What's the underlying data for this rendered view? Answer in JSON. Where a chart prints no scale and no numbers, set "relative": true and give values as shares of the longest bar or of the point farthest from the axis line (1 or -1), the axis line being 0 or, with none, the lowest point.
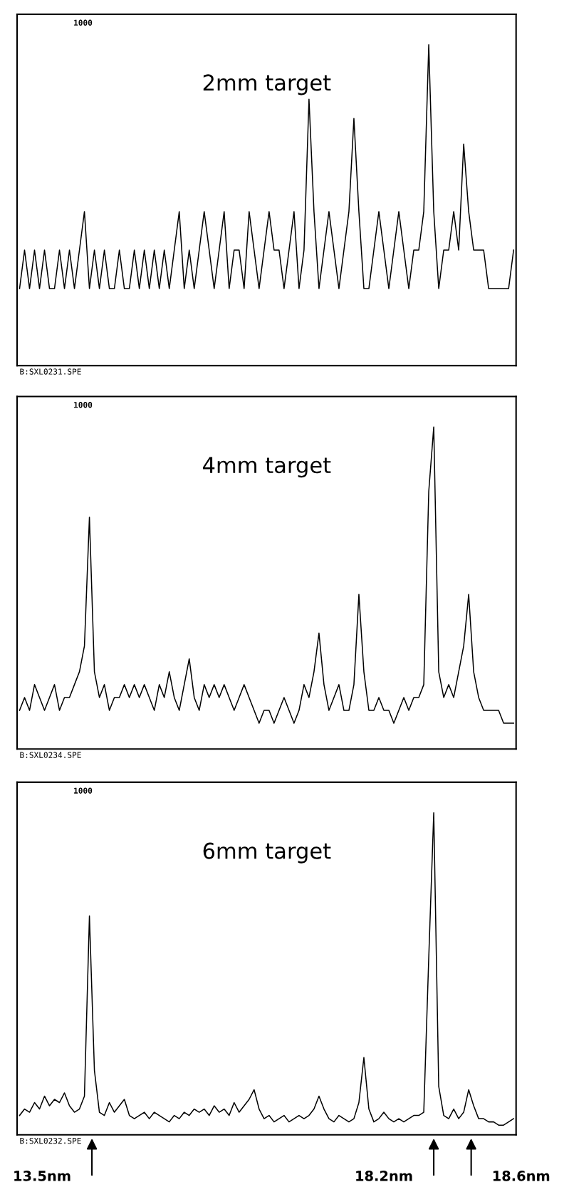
{
  "chart_data": [
    {
      "type": "line",
      "title": "2mm target",
      "relative": true,
      "annotations": [
        "1000",
        "B:SXL0231.SPE"
      ],
      "categories": [
        null,
        null,
        null,
        null,
        null,
        null,
        null,
        null,
        null,
        null,
        null,
        null,
        null,
        null,
        null,
        null,
        null,
        null,
        null,
        null,
        null,
        null,
        null,
        null,
        null,
        null,
        null,
        null,
        null,
        null,
        null,
        null,
        null,
        null,
        null,
        null,
        null,
        null,
        null,
        null,
        null,
        null,
        null,
        null,
        null,
        null,
        null,
        null,
        null,
        null,
        null,
        null,
        null,
        null,
        null,
        null,
        null,
        null,
        null,
        null,
        null,
        null,
        null,
        null,
        null,
        null,
        null,
        null,
        null,
        null,
        null,
        null,
        null,
        null,
        null,
        null,
        null,
        null,
        null,
        null,
        null,
        null,
        null,
        null,
        null,
        null,
        null,
        null,
        null,
        null,
        null,
        null,
        null,
        null,
        null,
        null,
        null,
        null,
        null,
        null
      ],
      "series": [
        {
          "color": "#000000",
          "values": [
            0.24,
            0.36,
            0.24,
            0.36,
            0.24,
            0.36,
            0.24,
            0.24,
            0.36,
            0.24,
            0.36,
            0.24,
            0.36,
            0.48,
            0.24,
            0.36,
            0.24,
            0.36,
            0.24,
            0.24,
            0.36,
            0.24,
            0.24,
            0.36,
            0.24,
            0.36,
            0.24,
            0.36,
            0.24,
            0.36,
            0.24,
            0.36,
            0.48,
            0.24,
            0.36,
            0.24,
            0.36,
            0.48,
            0.36,
            0.24,
            0.36,
            0.48,
            0.24,
            0.36,
            0.36,
            0.24,
            0.48,
            0.36,
            0.24,
            0.36,
            0.48,
            0.36,
            0.36,
            0.24,
            0.36,
            0.48,
            0.24,
            0.36,
            0.83,
            0.48,
            0.24,
            0.36,
            0.48,
            0.36,
            0.24,
            0.36,
            0.48,
            0.77,
            0.48,
            0.24,
            0.24,
            0.36,
            0.48,
            0.36,
            0.24,
            0.36,
            0.48,
            0.36,
            0.24,
            0.36,
            0.36,
            0.48,
            1.0,
            0.48,
            0.24,
            0.36,
            0.36,
            0.48,
            0.36,
            0.69,
            0.48,
            0.36,
            0.36,
            0.36,
            0.24,
            0.24,
            0.24,
            0.24,
            0.24,
            0.36
          ]
        }
      ]
    },
    {
      "type": "line",
      "title": "4mm target",
      "relative": true,
      "annotations": [
        "1000",
        "B:SXL0234.SPE"
      ],
      "categories": [
        null,
        null,
        null,
        null,
        null,
        null,
        null,
        null,
        null,
        null,
        null,
        null,
        null,
        null,
        null,
        null,
        null,
        null,
        null,
        null,
        null,
        null,
        null,
        null,
        null,
        null,
        null,
        null,
        null,
        null,
        null,
        null,
        null,
        null,
        null,
        null,
        null,
        null,
        null,
        null,
        null,
        null,
        null,
        null,
        null,
        null,
        null,
        null,
        null,
        null,
        null,
        null,
        null,
        null,
        null,
        null,
        null,
        null,
        null,
        null,
        null,
        null,
        null,
        null,
        null,
        null,
        null,
        null,
        null,
        null,
        null,
        null,
        null,
        null,
        null,
        null,
        null,
        null,
        null,
        null,
        null,
        null,
        null,
        null,
        null,
        null,
        null,
        null,
        null,
        null,
        null,
        null,
        null,
        null,
        null,
        null,
        null,
        null,
        null,
        null
      ],
      "series": [
        {
          "color": "#000000",
          "values": [
            0.12,
            0.16,
            0.12,
            0.2,
            0.16,
            0.12,
            0.16,
            0.2,
            0.12,
            0.16,
            0.16,
            0.2,
            0.24,
            0.32,
            0.72,
            0.24,
            0.16,
            0.2,
            0.12,
            0.16,
            0.16,
            0.2,
            0.16,
            0.2,
            0.16,
            0.2,
            0.16,
            0.12,
            0.2,
            0.16,
            0.24,
            0.16,
            0.12,
            0.2,
            0.28,
            0.16,
            0.12,
            0.2,
            0.16,
            0.2,
            0.16,
            0.2,
            0.16,
            0.12,
            0.16,
            0.2,
            0.16,
            0.12,
            0.08,
            0.12,
            0.12,
            0.08,
            0.12,
            0.16,
            0.12,
            0.08,
            0.12,
            0.2,
            0.16,
            0.24,
            0.36,
            0.2,
            0.12,
            0.16,
            0.2,
            0.12,
            0.12,
            0.2,
            0.48,
            0.24,
            0.12,
            0.12,
            0.16,
            0.12,
            0.12,
            0.08,
            0.12,
            0.16,
            0.12,
            0.16,
            0.16,
            0.2,
            0.8,
            1.0,
            0.24,
            0.16,
            0.2,
            0.16,
            0.24,
            0.32,
            0.48,
            0.24,
            0.16,
            0.12,
            0.12,
            0.12,
            0.12,
            0.08,
            0.08,
            0.08
          ]
        }
      ]
    },
    {
      "type": "line",
      "title": "6mm target",
      "relative": true,
      "annotations": [
        "1000",
        "B:SXL0232.SPE",
        "13.5nm",
        "18.2nm",
        "18.6nm"
      ],
      "categories": [
        null,
        null,
        null,
        null,
        null,
        null,
        null,
        null,
        null,
        null,
        null,
        null,
        null,
        null,
        null,
        null,
        null,
        null,
        null,
        null,
        null,
        null,
        null,
        null,
        null,
        null,
        null,
        null,
        null,
        null,
        null,
        null,
        null,
        null,
        null,
        null,
        null,
        null,
        null,
        null,
        null,
        null,
        null,
        null,
        null,
        null,
        null,
        null,
        null,
        null,
        null,
        null,
        null,
        null,
        null,
        null,
        null,
        null,
        null,
        null,
        null,
        null,
        null,
        null,
        null,
        null,
        null,
        null,
        null,
        null,
        null,
        null,
        null,
        null,
        null,
        null,
        null,
        null,
        null,
        null,
        null,
        null,
        null,
        null,
        null,
        null,
        null,
        null,
        null,
        null,
        null,
        null,
        null,
        null,
        null,
        null,
        null,
        null,
        null,
        null
      ],
      "series": [
        {
          "color": "#000000",
          "values": [
            0.06,
            0.08,
            0.07,
            0.1,
            0.08,
            0.12,
            0.09,
            0.11,
            0.1,
            0.13,
            0.09,
            0.07,
            0.08,
            0.12,
            0.68,
            0.2,
            0.07,
            0.06,
            0.1,
            0.07,
            0.09,
            0.11,
            0.06,
            0.05,
            0.06,
            0.07,
            0.05,
            0.07,
            0.06,
            0.05,
            0.04,
            0.06,
            0.05,
            0.07,
            0.06,
            0.08,
            0.07,
            0.08,
            0.06,
            0.09,
            0.07,
            0.08,
            0.06,
            0.1,
            0.07,
            0.09,
            0.11,
            0.14,
            0.08,
            0.05,
            0.06,
            0.04,
            0.05,
            0.06,
            0.04,
            0.05,
            0.06,
            0.05,
            0.06,
            0.08,
            0.12,
            0.08,
            0.05,
            0.04,
            0.06,
            0.05,
            0.04,
            0.05,
            0.1,
            0.24,
            0.08,
            0.04,
            0.05,
            0.07,
            0.05,
            0.04,
            0.05,
            0.04,
            0.05,
            0.06,
            0.06,
            0.07,
            0.55,
            1.0,
            0.15,
            0.06,
            0.05,
            0.08,
            0.05,
            0.07,
            0.14,
            0.09,
            0.05,
            0.05,
            0.04,
            0.04,
            0.03,
            0.03,
            0.04,
            0.05
          ]
        }
      ]
    }
  ]
}
